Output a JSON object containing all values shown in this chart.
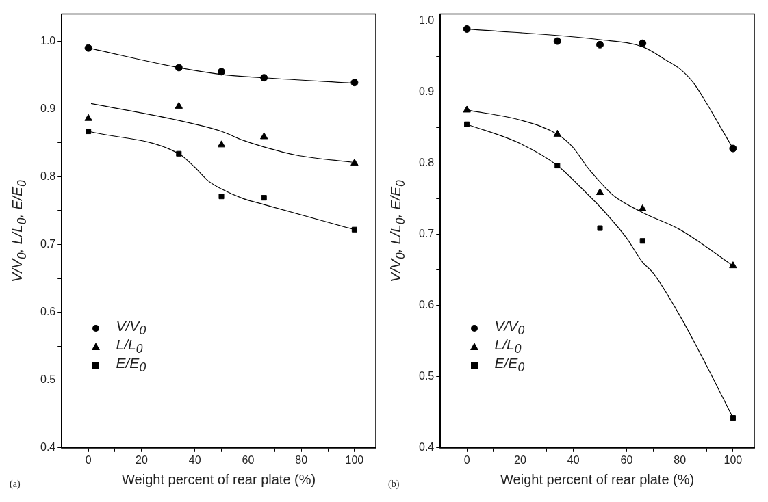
{
  "chart_data": [
    {
      "type": "scatter",
      "xlabel": "Weight percent of rear plate (%)",
      "ylabel": "V/V$_{0}$, L/L$_{0}$, E/E$_{0}$",
      "annotations": [
        "(a)"
      ],
      "legend": "bottom left",
      "grid": false,
      "x": [
        0,
        34,
        50,
        66,
        100
      ],
      "xlim": [
        -10,
        108
      ],
      "xticks": [
        0,
        {
          "value": 10,
          "label": null
        },
        20,
        {
          "value": 30,
          "label": null
        },
        40,
        {
          "value": 50,
          "label": null
        },
        60,
        {
          "value": 70,
          "label": null
        },
        80,
        {
          "value": 90,
          "label": null
        },
        100
      ],
      "ylim": [
        0.4,
        1.04
      ],
      "yticks": [
        0.4,
        {
          "value": 0.45,
          "label": null
        },
        0.5,
        {
          "value": 0.55,
          "label": null
        },
        0.6,
        {
          "value": 0.65,
          "label": null
        },
        0.7,
        {
          "value": 0.75,
          "label": null
        },
        0.8,
        {
          "value": 0.85,
          "label": null
        },
        0.9,
        {
          "value": 0.95,
          "label": null
        },
        {
          "value": 1,
          "label": "1.0"
        }
      ],
      "series": [
        {
          "name": "V/V$_{0}$",
          "color": "#000000",
          "marker": "circle",
          "values": [
            0.99,
            0.961,
            0.955,
            0.946,
            0.939
          ]
        },
        {
          "name": "L/L$_{0}$",
          "color": "#000000",
          "marker": "triangle",
          "values": [
            0.886,
            0.904,
            0.847,
            0.859,
            0.82
          ]
        },
        {
          "name": "E/E$_{0}$",
          "color": "#000000",
          "marker": "square",
          "values": [
            0.867,
            0.834,
            0.771,
            0.769,
            0.722
          ]
        },
        {
          "type": "line",
          "color": "#000000",
          "marker": "none",
          "x": [
            0,
            34,
            50,
            66,
            100
          ],
          "values": [
            0.99,
            0.961,
            0.951,
            0.946,
            0.938
          ]
        },
        {
          "type": "line",
          "color": "#000000",
          "marker": "none",
          "x": [
            1,
            34,
            50,
            58,
            66,
            78,
            100
          ],
          "values": [
            0.908,
            0.883,
            0.867,
            0.854,
            0.844,
            0.832,
            0.821
          ]
        },
        {
          "type": "line",
          "color": "#000000",
          "marker": "none",
          "x": [
            0,
            34,
            40,
            45,
            50,
            58,
            66,
            100
          ],
          "values": [
            0.867,
            0.834,
            0.814,
            0.794,
            0.782,
            0.768,
            0.759,
            0.722
          ]
        }
      ]
    },
    {
      "type": "scatter",
      "xlabel": "Weight percent of rear plate (%)",
      "ylabel": "V/V$_{0}$, L/L$_{0}$, E/E$_{0}$",
      "annotations": [
        "(b)"
      ],
      "legend": "bottom left",
      "grid": false,
      "x": [
        0,
        34,
        50,
        66,
        100
      ],
      "xlim": [
        -10,
        108
      ],
      "xticks": [
        0,
        {
          "value": 10,
          "label": null
        },
        20,
        {
          "value": 30,
          "label": null
        },
        40,
        {
          "value": 50,
          "label": null
        },
        60,
        {
          "value": 70,
          "label": null
        },
        80,
        {
          "value": 90,
          "label": null
        },
        100
      ],
      "ylim": [
        0.4,
        1.01
      ],
      "yticks": [
        0.4,
        {
          "value": 0.45,
          "label": null
        },
        0.5,
        {
          "value": 0.55,
          "label": null
        },
        0.6,
        {
          "value": 0.65,
          "label": null
        },
        0.7,
        {
          "value": 0.75,
          "label": null
        },
        0.8,
        {
          "value": 0.85,
          "label": null
        },
        0.9,
        {
          "value": 0.95,
          "label": null
        },
        {
          "value": 1,
          "label": "1.0"
        }
      ],
      "series": [
        {
          "name": "V/V$_{0}$",
          "color": "#000000",
          "marker": "circle",
          "values": [
            0.989,
            0.972,
            0.967,
            0.969,
            0.821
          ]
        },
        {
          "name": "L/L$_{0}$",
          "color": "#000000",
          "marker": "triangle",
          "values": [
            0.875,
            0.841,
            0.759,
            0.736,
            0.656
          ]
        },
        {
          "name": "E/E$_{0}$",
          "color": "#000000",
          "marker": "square",
          "values": [
            0.855,
            0.797,
            0.709,
            0.691,
            0.442
          ]
        },
        {
          "type": "line",
          "color": "#000000",
          "marker": "none",
          "x": [
            0,
            50,
            66,
            75,
            80,
            85,
            90,
            95,
            100
          ],
          "values": [
            0.989,
            0.974,
            0.964,
            0.945,
            0.933,
            0.914,
            0.885,
            0.853,
            0.821
          ]
        },
        {
          "type": "line",
          "color": "#000000",
          "marker": "none",
          "x": [
            0,
            20,
            34,
            40,
            45,
            50,
            55,
            66,
            80,
            100
          ],
          "values": [
            0.875,
            0.861,
            0.841,
            0.822,
            0.796,
            0.774,
            0.755,
            0.731,
            0.707,
            0.656
          ]
        },
        {
          "type": "line",
          "color": "#000000",
          "marker": "none",
          "x": [
            0,
            20,
            34,
            45,
            50,
            60,
            66,
            70,
            80,
            90,
            100
          ],
          "values": [
            0.855,
            0.828,
            0.797,
            0.758,
            0.739,
            0.695,
            0.661,
            0.646,
            0.586,
            0.516,
            0.442
          ]
        }
      ]
    }
  ]
}
